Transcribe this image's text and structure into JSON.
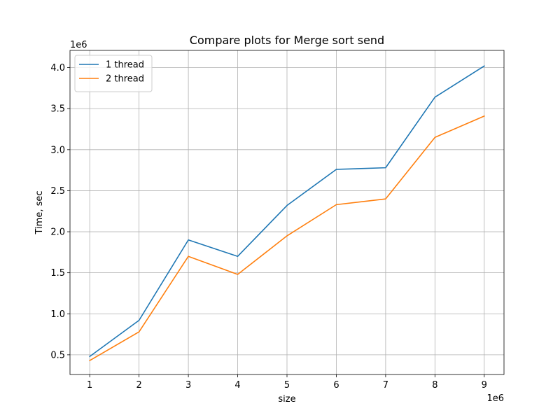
{
  "chart_data": {
    "type": "line",
    "title": "Compare plots for Merge sort send",
    "xlabel": "size",
    "ylabel": "Time, sec",
    "x_offset_label": "1e6",
    "y_offset_label": "1e6",
    "x": [
      1000000,
      2000000,
      3000000,
      4000000,
      5000000,
      6000000,
      7000000,
      8000000,
      9000000
    ],
    "xticks": [
      1,
      2,
      3,
      4,
      5,
      6,
      7,
      8,
      9
    ],
    "xtick_labels": [
      "1",
      "2",
      "3",
      "4",
      "5",
      "6",
      "7",
      "8",
      "9"
    ],
    "yticks": [
      0.5,
      1.0,
      1.5,
      2.0,
      2.5,
      3.0,
      3.5,
      4.0
    ],
    "ytick_labels": [
      "0.5",
      "1.0",
      "1.5",
      "2.0",
      "2.5",
      "3.0",
      "3.5",
      "4.0"
    ],
    "xlim": [
      600000,
      9400000
    ],
    "ylim": [
      260000,
      4210000
    ],
    "grid": true,
    "legend_position": "top-left",
    "series": [
      {
        "name": "1 thread",
        "color": "#1f77b4",
        "values": [
          480000,
          920000,
          1900000,
          1700000,
          2320000,
          2760000,
          2780000,
          3640000,
          4020000
        ]
      },
      {
        "name": "2 thread",
        "color": "#ff7f0e",
        "values": [
          430000,
          780000,
          1700000,
          1480000,
          1950000,
          2330000,
          2400000,
          3150000,
          3410000
        ]
      }
    ]
  }
}
